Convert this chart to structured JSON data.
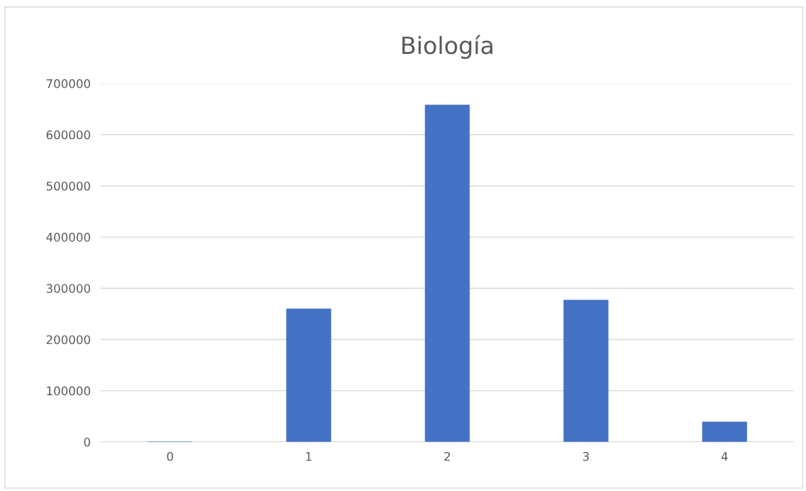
{
  "chart_data": {
    "type": "bar",
    "title": "Biología",
    "categories": [
      "0",
      "1",
      "2",
      "3",
      "4"
    ],
    "values": [
      0,
      260000,
      658000,
      277000,
      39000
    ],
    "color": "#4472c4",
    "ylim": [
      0,
      700000
    ],
    "yticks": [
      0,
      100000,
      200000,
      300000,
      400000,
      500000,
      600000,
      700000
    ],
    "grid": "y",
    "legend": false
  }
}
